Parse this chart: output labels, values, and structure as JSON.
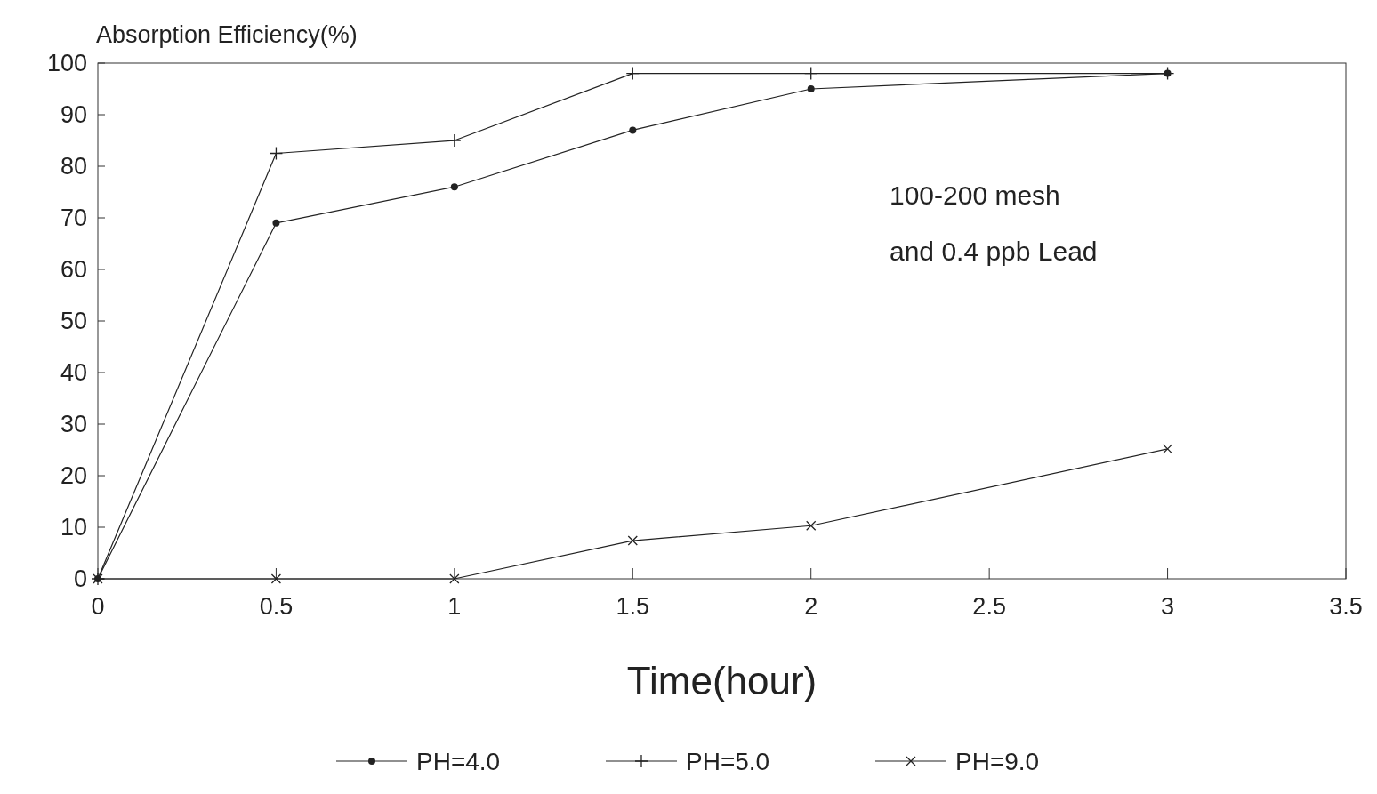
{
  "chart_data": {
    "type": "line",
    "ylabel": "Absorption Efficiency(%)",
    "xlabel": "Time(hour)",
    "x": [
      0,
      0.5,
      1,
      1.5,
      2,
      3
    ],
    "series": [
      {
        "name": "PH=4.0",
        "color": "#222222",
        "marker": "circle",
        "values": [
          0,
          69,
          76,
          87,
          95,
          98
        ]
      },
      {
        "name": "PH=5.0",
        "color": "#222222",
        "marker": "cross",
        "values": [
          0,
          82.5,
          85,
          98,
          98,
          98
        ]
      },
      {
        "name": "PH=9.0",
        "color": "#222222",
        "marker": "x",
        "values": [
          0,
          0,
          0,
          7.4,
          10.3,
          25.2
        ]
      }
    ],
    "xlim": [
      0,
      3.5
    ],
    "xticks": [
      0,
      0.5,
      1,
      1.5,
      2,
      2.5,
      3,
      3.5
    ],
    "ylim": [
      0,
      100
    ],
    "yticks": [
      0,
      10,
      20,
      30,
      40,
      50,
      60,
      70,
      80,
      90,
      100
    ],
    "annotations": [
      "100-200 mesh",
      "and 0.4 ppb Lead"
    ],
    "legend": "bottom",
    "grid": false,
    "line_style": "solid"
  }
}
